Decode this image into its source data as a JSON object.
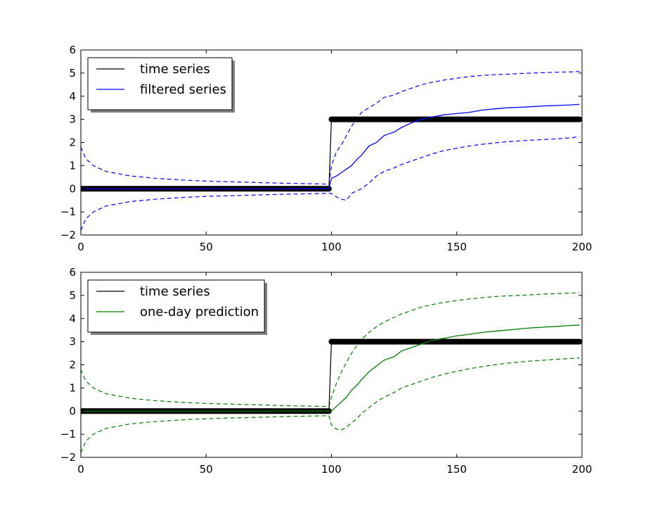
{
  "chart_data": [
    {
      "type": "line",
      "title": "",
      "xlabel": "",
      "ylabel": "",
      "xlim": [
        0,
        200
      ],
      "ylim": [
        -2,
        6
      ],
      "xticks": [
        0,
        50,
        100,
        150,
        200
      ],
      "yticks": [
        -2,
        -1,
        0,
        1,
        2,
        3,
        4,
        5,
        6
      ],
      "grid": false,
      "legend_position": "top-left",
      "legend": [
        {
          "label": "time series",
          "color": "#000000"
        },
        {
          "label": "filtered series",
          "color": "#0000ff"
        }
      ],
      "observations": {
        "color": "#000000",
        "segments": [
          {
            "x_range": [
              0,
              99
            ],
            "y": 0
          },
          {
            "x_range": [
              100,
              199
            ],
            "y": 3
          }
        ]
      },
      "estimate": {
        "color": "#0000ff",
        "x": [
          0,
          99,
          100,
          102,
          104,
          106,
          108,
          110,
          112,
          115,
          118,
          121,
          125,
          128,
          132,
          136,
          140,
          145,
          150,
          155,
          160,
          165,
          170,
          175,
          180,
          185,
          190,
          195,
          199
        ],
        "y": [
          0,
          0,
          0.45,
          0.55,
          0.7,
          0.85,
          1.0,
          1.25,
          1.45,
          1.85,
          2.0,
          2.3,
          2.45,
          2.65,
          2.85,
          3.0,
          3.1,
          3.2,
          3.25,
          3.3,
          3.4,
          3.45,
          3.5,
          3.52,
          3.55,
          3.58,
          3.6,
          3.62,
          3.65
        ]
      },
      "upper_band": {
        "color": "#0000ff",
        "style": "dashed",
        "x": [
          0,
          2,
          5,
          10,
          20,
          30,
          40,
          50,
          60,
          70,
          80,
          90,
          99,
          100,
          102,
          104,
          106,
          108,
          110,
          112,
          115,
          118,
          121,
          125,
          128,
          132,
          136,
          140,
          145,
          150,
          155,
          160,
          165,
          170,
          175,
          180,
          185,
          190,
          195,
          199
        ],
        "y": [
          1.8,
          1.3,
          1.0,
          0.75,
          0.55,
          0.45,
          0.38,
          0.33,
          0.3,
          0.27,
          0.24,
          0.22,
          0.2,
          1.0,
          1.6,
          1.9,
          2.3,
          2.7,
          3.0,
          3.3,
          3.5,
          3.7,
          3.95,
          4.05,
          4.2,
          4.35,
          4.5,
          4.6,
          4.7,
          4.78,
          4.85,
          4.9,
          4.93,
          4.95,
          4.98,
          5.0,
          5.02,
          5.04,
          5.05,
          5.07
        ]
      },
      "lower_band": {
        "color": "#0000ff",
        "style": "dashed",
        "x": [
          0,
          2,
          5,
          10,
          20,
          30,
          40,
          50,
          60,
          70,
          80,
          90,
          99,
          100,
          102,
          104,
          106,
          108,
          110,
          112,
          115,
          118,
          121,
          125,
          128,
          132,
          136,
          140,
          145,
          150,
          155,
          160,
          165,
          170,
          175,
          180,
          185,
          190,
          195,
          199
        ],
        "y": [
          -1.8,
          -1.3,
          -1.0,
          -0.75,
          -0.55,
          -0.45,
          -0.38,
          -0.33,
          -0.3,
          -0.27,
          -0.24,
          -0.22,
          -0.2,
          -0.2,
          -0.35,
          -0.45,
          -0.5,
          -0.2,
          -0.1,
          0.0,
          0.25,
          0.55,
          0.75,
          0.9,
          1.05,
          1.2,
          1.35,
          1.5,
          1.65,
          1.75,
          1.85,
          1.92,
          1.98,
          2.03,
          2.07,
          2.1,
          2.13,
          2.16,
          2.2,
          2.25
        ]
      }
    },
    {
      "type": "line",
      "title": "",
      "xlabel": "",
      "ylabel": "",
      "xlim": [
        0,
        200
      ],
      "ylim": [
        -2,
        6
      ],
      "xticks": [
        0,
        50,
        100,
        150,
        200
      ],
      "yticks": [
        -2,
        -1,
        0,
        1,
        2,
        3,
        4,
        5,
        6
      ],
      "grid": false,
      "legend_position": "top-left",
      "legend": [
        {
          "label": "time series",
          "color": "#000000"
        },
        {
          "label": "one-day prediction",
          "color": "#008000"
        }
      ],
      "observations": {
        "color": "#000000",
        "segments": [
          {
            "x_range": [
              0,
              99
            ],
            "y": 0
          },
          {
            "x_range": [
              100,
              199
            ],
            "y": 3
          }
        ]
      },
      "estimate": {
        "color": "#008000",
        "x": [
          0,
          99,
          100,
          102,
          104,
          106,
          108,
          110,
          112,
          115,
          118,
          121,
          125,
          128,
          132,
          136,
          140,
          145,
          150,
          155,
          160,
          165,
          170,
          175,
          180,
          185,
          190,
          195,
          199
        ],
        "y": [
          0,
          0,
          0.0,
          0.2,
          0.4,
          0.6,
          0.9,
          1.1,
          1.35,
          1.7,
          1.95,
          2.2,
          2.35,
          2.6,
          2.75,
          2.9,
          3.05,
          3.15,
          3.25,
          3.32,
          3.4,
          3.45,
          3.5,
          3.55,
          3.6,
          3.63,
          3.66,
          3.7,
          3.72
        ]
      },
      "upper_band": {
        "color": "#008000",
        "style": "dashed",
        "x": [
          0,
          2,
          5,
          10,
          20,
          30,
          40,
          50,
          60,
          70,
          80,
          90,
          99,
          100,
          102,
          104,
          106,
          108,
          110,
          112,
          115,
          118,
          121,
          125,
          128,
          132,
          136,
          140,
          145,
          150,
          155,
          160,
          165,
          170,
          175,
          180,
          185,
          190,
          195,
          199
        ],
        "y": [
          1.8,
          1.3,
          1.0,
          0.75,
          0.55,
          0.45,
          0.38,
          0.33,
          0.3,
          0.27,
          0.24,
          0.22,
          0.2,
          0.6,
          1.2,
          1.7,
          2.1,
          2.5,
          2.8,
          3.1,
          3.4,
          3.65,
          3.85,
          4.05,
          4.2,
          4.35,
          4.5,
          4.6,
          4.7,
          4.78,
          4.85,
          4.9,
          4.95,
          4.98,
          5.0,
          5.03,
          5.06,
          5.08,
          5.1,
          5.12
        ]
      },
      "lower_band": {
        "color": "#008000",
        "style": "dashed",
        "x": [
          0,
          2,
          5,
          10,
          20,
          30,
          40,
          50,
          60,
          70,
          80,
          90,
          99,
          100,
          102,
          104,
          106,
          108,
          110,
          112,
          115,
          118,
          121,
          125,
          128,
          132,
          136,
          140,
          145,
          150,
          155,
          160,
          165,
          170,
          175,
          180,
          185,
          190,
          195,
          199
        ],
        "y": [
          -1.8,
          -1.3,
          -1.0,
          -0.75,
          -0.55,
          -0.45,
          -0.38,
          -0.33,
          -0.3,
          -0.27,
          -0.24,
          -0.22,
          -0.2,
          -0.6,
          -0.78,
          -0.82,
          -0.7,
          -0.5,
          -0.35,
          -0.1,
          0.15,
          0.4,
          0.6,
          0.8,
          1.0,
          1.15,
          1.3,
          1.45,
          1.6,
          1.72,
          1.83,
          1.92,
          2.0,
          2.07,
          2.12,
          2.17,
          2.2,
          2.24,
          2.27,
          2.3
        ]
      }
    }
  ]
}
